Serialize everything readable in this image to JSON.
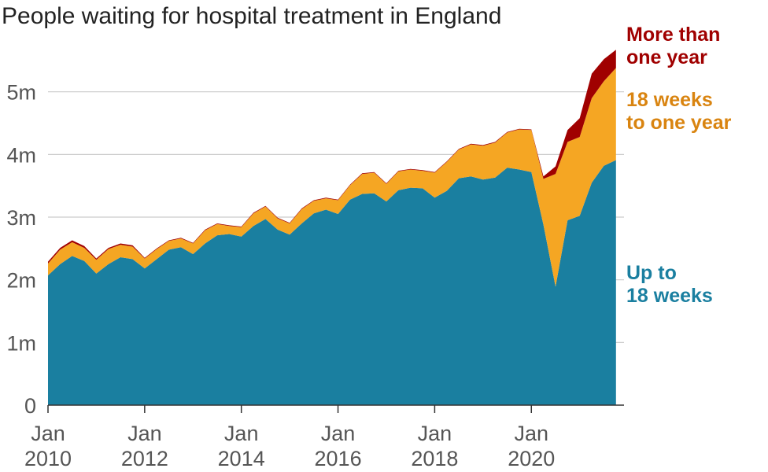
{
  "chart_data": {
    "type": "area",
    "stacked": true,
    "title": "People waiting for hospital treatment in England",
    "xlabel": "",
    "ylabel": "",
    "ylim": [
      0,
      5900000
    ],
    "y_ticks": [
      {
        "value": 0,
        "label": "0"
      },
      {
        "value": 1000000,
        "label": "1m"
      },
      {
        "value": 2000000,
        "label": "2m"
      },
      {
        "value": 3000000,
        "label": "3m"
      },
      {
        "value": 4000000,
        "label": "4m"
      },
      {
        "value": 5000000,
        "label": "5m"
      }
    ],
    "x_ticks": [
      {
        "date": "2010-01",
        "line1": "Jan",
        "line2": "2010"
      },
      {
        "date": "2012-01",
        "line1": "Jan",
        "line2": "2012"
      },
      {
        "date": "2014-01",
        "line1": "Jan",
        "line2": "2014"
      },
      {
        "date": "2016-01",
        "line1": "Jan",
        "line2": "2016"
      },
      {
        "date": "2018-01",
        "line1": "Jan",
        "line2": "2018"
      },
      {
        "date": "2020-01",
        "line1": "Jan",
        "line2": "2020"
      }
    ],
    "grid": "horizontal",
    "x": [
      "2010-01",
      "2010-04",
      "2010-07",
      "2010-10",
      "2011-01",
      "2011-04",
      "2011-07",
      "2011-10",
      "2012-01",
      "2012-04",
      "2012-07",
      "2012-10",
      "2013-01",
      "2013-04",
      "2013-07",
      "2013-10",
      "2014-01",
      "2014-04",
      "2014-07",
      "2014-10",
      "2015-01",
      "2015-04",
      "2015-07",
      "2015-10",
      "2016-01",
      "2016-04",
      "2016-07",
      "2016-10",
      "2017-01",
      "2017-04",
      "2017-07",
      "2017-10",
      "2018-01",
      "2018-04",
      "2018-07",
      "2018-10",
      "2019-01",
      "2019-04",
      "2019-07",
      "2019-10",
      "2020-01",
      "2020-04",
      "2020-07",
      "2020-10",
      "2021-01",
      "2021-04",
      "2021-07",
      "2021-10"
    ],
    "series": [
      {
        "name": "Up to 18 weeks",
        "color": "#1a7fa0",
        "values": [
          2070000,
          2250000,
          2380000,
          2300000,
          2100000,
          2250000,
          2360000,
          2330000,
          2180000,
          2330000,
          2480000,
          2520000,
          2410000,
          2580000,
          2710000,
          2730000,
          2690000,
          2860000,
          2970000,
          2800000,
          2720000,
          2900000,
          3060000,
          3120000,
          3050000,
          3280000,
          3370000,
          3380000,
          3250000,
          3430000,
          3470000,
          3460000,
          3310000,
          3420000,
          3620000,
          3650000,
          3600000,
          3630000,
          3790000,
          3760000,
          3720000,
          2880000,
          1890000,
          2950000,
          3020000,
          3550000,
          3820000,
          3910000
        ]
      },
      {
        "name": "18 weeks to one year",
        "color": "#f5a623",
        "values": [
          190000,
          230000,
          220000,
          210000,
          220000,
          240000,
          200000,
          200000,
          160000,
          160000,
          140000,
          140000,
          170000,
          210000,
          180000,
          130000,
          150000,
          200000,
          200000,
          180000,
          180000,
          230000,
          200000,
          180000,
          220000,
          230000,
          320000,
          330000,
          280000,
          300000,
          290000,
          280000,
          400000,
          460000,
          460000,
          510000,
          540000,
          560000,
          560000,
          640000,
          670000,
          730000,
          1800000,
          1250000,
          1260000,
          1350000,
          1350000,
          1470000
        ]
      },
      {
        "name": "More than one year",
        "color": "#a00000",
        "values": [
          30000,
          30000,
          30000,
          30000,
          20000,
          20000,
          20000,
          20000,
          10000,
          10000,
          10000,
          10000,
          10000,
          10000,
          10000,
          10000,
          10000,
          10000,
          10000,
          10000,
          10000,
          10000,
          10000,
          10000,
          10000,
          10000,
          10000,
          10000,
          10000,
          10000,
          10000,
          10000,
          10000,
          10000,
          10000,
          10000,
          10000,
          10000,
          10000,
          10000,
          10000,
          40000,
          120000,
          190000,
          300000,
          390000,
          350000,
          290000
        ]
      }
    ],
    "series_labels": [
      {
        "series": "More than one year",
        "line1": "More than",
        "line2": "one year"
      },
      {
        "series": "18 weeks to one year",
        "line1": "18 weeks",
        "line2": "to one year"
      },
      {
        "series": "Up to 18 weeks",
        "line1": "Up to",
        "line2": "18 weeks"
      }
    ]
  }
}
